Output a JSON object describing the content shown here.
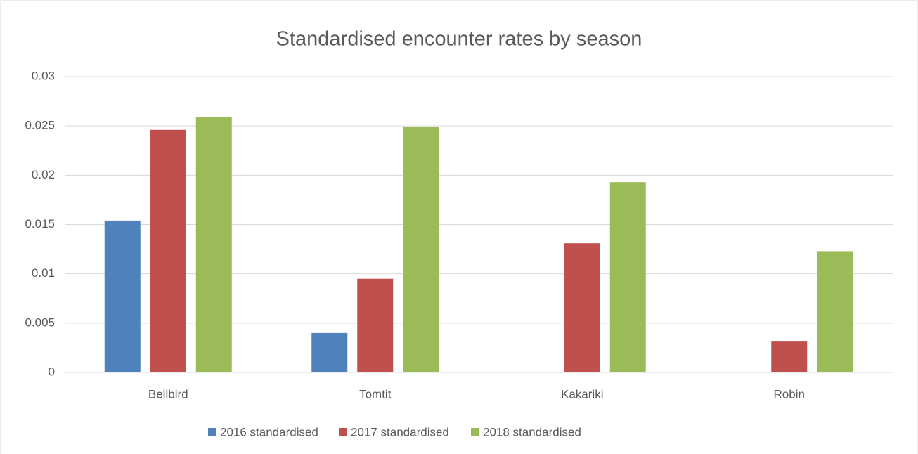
{
  "chart_data": {
    "type": "bar",
    "title": "Standardised encounter rates by season",
    "categories": [
      "Bellbird",
      "Tomtit",
      "Kakariki",
      "Robin"
    ],
    "series": [
      {
        "name": "2016 standardised",
        "color": "#4f81bd",
        "values": [
          0.0154,
          0.004,
          0,
          0
        ]
      },
      {
        "name": "2017 standardised",
        "color": "#c0504d",
        "values": [
          0.0246,
          0.0095,
          0.0131,
          0.0032
        ]
      },
      {
        "name": "2018 standardised",
        "color": "#9bbb59",
        "values": [
          0.0259,
          0.0249,
          0.0193,
          0.0123
        ]
      }
    ],
    "ylim": [
      0,
      0.03
    ],
    "yticks": [
      0,
      0.005,
      0.01,
      0.015,
      0.02,
      0.025,
      0.03
    ],
    "grid": true,
    "legend": "bottom"
  }
}
